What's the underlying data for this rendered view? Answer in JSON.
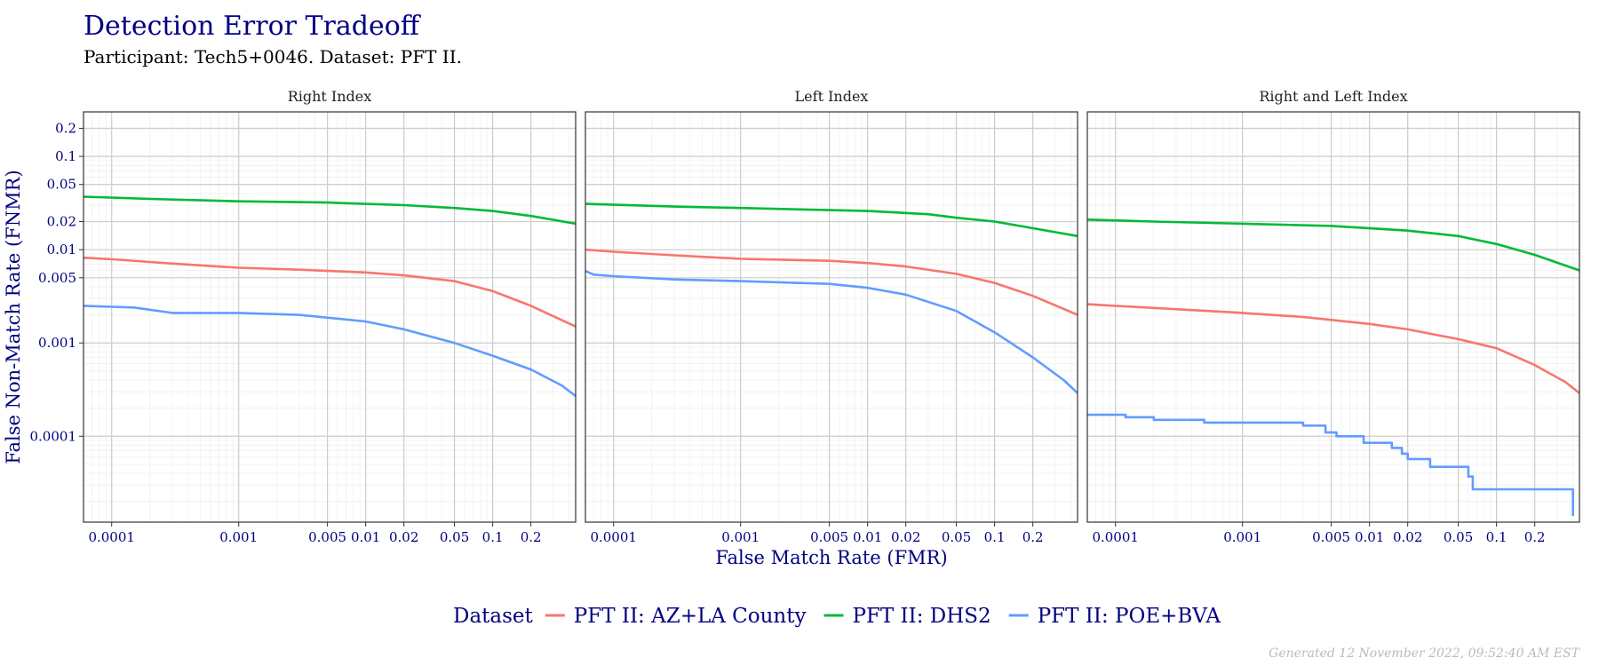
{
  "header": {
    "title": "Detection Error Tradeoff",
    "subtitle": "Participant: Tech5+0046. Dataset: PFT II."
  },
  "footer": {
    "generated": "Generated 12 November 2022, 09:52:40 AM EST"
  },
  "legend": {
    "title": "Dataset",
    "placement": "bottom",
    "items": [
      {
        "label": "PFT II: AZ+LA County",
        "color": "#F8766D"
      },
      {
        "label": "PFT II: DHS2",
        "color": "#00BA38"
      },
      {
        "label": "PFT II: POE+BVA",
        "color": "#619CFF"
      }
    ]
  },
  "chart_data": {
    "type": "line",
    "title": "Detection Error Tradeoff",
    "xlabel": "False Match Rate (FMR)",
    "ylabel": "False Non-Match Rate (FNMR)",
    "x_scale": "log",
    "y_scale": "log",
    "xlim": [
      6e-05,
      0.45
    ],
    "ylim": [
      1.2e-05,
      0.3
    ],
    "grid": true,
    "x_ticks": [
      {
        "value": 0.0001,
        "label": "0.0001"
      },
      {
        "value": 0.001,
        "label": "0.001"
      },
      {
        "value": 0.005,
        "label": "0.005"
      },
      {
        "value": 0.01,
        "label": "0.01"
      },
      {
        "value": 0.02,
        "label": "0.02"
      },
      {
        "value": 0.05,
        "label": "0.05"
      },
      {
        "value": 0.1,
        "label": "0.1"
      },
      {
        "value": 0.2,
        "label": "0.2"
      }
    ],
    "y_ticks": [
      {
        "value": 0.0001,
        "label": "0.0001"
      },
      {
        "value": 0.001,
        "label": "0.001"
      },
      {
        "value": 0.005,
        "label": "0.005"
      },
      {
        "value": 0.01,
        "label": "0.01"
      },
      {
        "value": 0.02,
        "label": "0.02"
      },
      {
        "value": 0.05,
        "label": "0.05"
      },
      {
        "value": 0.1,
        "label": "0.1"
      },
      {
        "value": 0.2,
        "label": "0.2"
      }
    ],
    "panels": [
      {
        "title": "Right Index",
        "series": [
          {
            "name": "PFT II: AZ+LA County",
            "color": "#F8766D",
            "step": false,
            "points": [
              [
                6e-05,
                0.0082
              ],
              [
                0.0001,
                0.0079
              ],
              [
                0.0003,
                0.0071
              ],
              [
                0.001,
                0.0064
              ],
              [
                0.003,
                0.0061
              ],
              [
                0.01,
                0.0057
              ],
              [
                0.02,
                0.0053
              ],
              [
                0.05,
                0.0046
              ],
              [
                0.1,
                0.0036
              ],
              [
                0.2,
                0.0025
              ],
              [
                0.45,
                0.0015
              ]
            ]
          },
          {
            "name": "PFT II: DHS2",
            "color": "#00BA38",
            "step": false,
            "points": [
              [
                6e-05,
                0.037
              ],
              [
                0.0002,
                0.035
              ],
              [
                0.001,
                0.033
              ],
              [
                0.005,
                0.032
              ],
              [
                0.02,
                0.03
              ],
              [
                0.05,
                0.028
              ],
              [
                0.1,
                0.026
              ],
              [
                0.2,
                0.023
              ],
              [
                0.45,
                0.019
              ]
            ]
          },
          {
            "name": "PFT II: POE+BVA",
            "color": "#619CFF",
            "step": false,
            "points": [
              [
                6e-05,
                0.0025
              ],
              [
                0.00015,
                0.0024
              ],
              [
                0.0003,
                0.0021
              ],
              [
                0.001,
                0.0021
              ],
              [
                0.003,
                0.002
              ],
              [
                0.01,
                0.0017
              ],
              [
                0.02,
                0.0014
              ],
              [
                0.05,
                0.001
              ],
              [
                0.1,
                0.00073
              ],
              [
                0.2,
                0.00052
              ],
              [
                0.35,
                0.00035
              ],
              [
                0.45,
                0.00027
              ]
            ]
          }
        ]
      },
      {
        "title": "Left Index",
        "series": [
          {
            "name": "PFT II: AZ+LA County",
            "color": "#F8766D",
            "step": false,
            "points": [
              [
                6e-05,
                0.01
              ],
              [
                0.0001,
                0.0095
              ],
              [
                0.0003,
                0.0087
              ],
              [
                0.001,
                0.008
              ],
              [
                0.005,
                0.0076
              ],
              [
                0.01,
                0.0072
              ],
              [
                0.02,
                0.0066
              ],
              [
                0.05,
                0.0055
              ],
              [
                0.1,
                0.0044
              ],
              [
                0.2,
                0.0032
              ],
              [
                0.45,
                0.002
              ]
            ]
          },
          {
            "name": "PFT II: DHS2",
            "color": "#00BA38",
            "step": false,
            "points": [
              [
                6e-05,
                0.031
              ],
              [
                0.0003,
                0.029
              ],
              [
                0.001,
                0.028
              ],
              [
                0.01,
                0.026
              ],
              [
                0.03,
                0.024
              ],
              [
                0.05,
                0.022
              ],
              [
                0.1,
                0.02
              ],
              [
                0.2,
                0.017
              ],
              [
                0.45,
                0.014
              ]
            ]
          },
          {
            "name": "PFT II: POE+BVA",
            "color": "#619CFF",
            "step": false,
            "points": [
              [
                6e-05,
                0.0059
              ],
              [
                7e-05,
                0.0054
              ],
              [
                0.0001,
                0.0052
              ],
              [
                0.0003,
                0.0048
              ],
              [
                0.001,
                0.0046
              ],
              [
                0.005,
                0.0043
              ],
              [
                0.01,
                0.0039
              ],
              [
                0.02,
                0.0033
              ],
              [
                0.05,
                0.0022
              ],
              [
                0.1,
                0.0013
              ],
              [
                0.2,
                0.0007
              ],
              [
                0.35,
                0.0004
              ],
              [
                0.45,
                0.00029
              ]
            ]
          }
        ]
      },
      {
        "title": "Right and Left Index",
        "series": [
          {
            "name": "PFT II: AZ+LA County",
            "color": "#F8766D",
            "step": false,
            "points": [
              [
                6e-05,
                0.0026
              ],
              [
                0.0001,
                0.0025
              ],
              [
                0.0003,
                0.0023
              ],
              [
                0.001,
                0.0021
              ],
              [
                0.003,
                0.0019
              ],
              [
                0.01,
                0.0016
              ],
              [
                0.02,
                0.0014
              ],
              [
                0.05,
                0.0011
              ],
              [
                0.1,
                0.00088
              ],
              [
                0.2,
                0.00058
              ],
              [
                0.35,
                0.00038
              ],
              [
                0.45,
                0.00029
              ]
            ]
          },
          {
            "name": "PFT II: DHS2",
            "color": "#00BA38",
            "step": false,
            "points": [
              [
                6e-05,
                0.021
              ],
              [
                0.0002,
                0.02
              ],
              [
                0.001,
                0.019
              ],
              [
                0.005,
                0.018
              ],
              [
                0.02,
                0.016
              ],
              [
                0.05,
                0.014
              ],
              [
                0.1,
                0.0115
              ],
              [
                0.2,
                0.0088
              ],
              [
                0.45,
                0.006
              ]
            ]
          },
          {
            "name": "PFT II: POE+BVA",
            "color": "#619CFF",
            "step": true,
            "points": [
              [
                6e-05,
                0.00017
              ],
              [
                0.00012,
                0.00016
              ],
              [
                0.0002,
                0.00015
              ],
              [
                0.0005,
                0.00014
              ],
              [
                0.003,
                0.00013
              ],
              [
                0.0045,
                0.00011
              ],
              [
                0.0055,
                0.0001
              ],
              [
                0.009,
                8.5e-05
              ],
              [
                0.015,
                7.5e-05
              ],
              [
                0.018,
                6.5e-05
              ],
              [
                0.02,
                5.7e-05
              ],
              [
                0.03,
                4.7e-05
              ],
              [
                0.06,
                3.7e-05
              ],
              [
                0.065,
                2.7e-05
              ],
              [
                0.4,
                2.7e-05
              ],
              [
                0.4,
                1.4e-05
              ]
            ]
          }
        ]
      }
    ]
  }
}
